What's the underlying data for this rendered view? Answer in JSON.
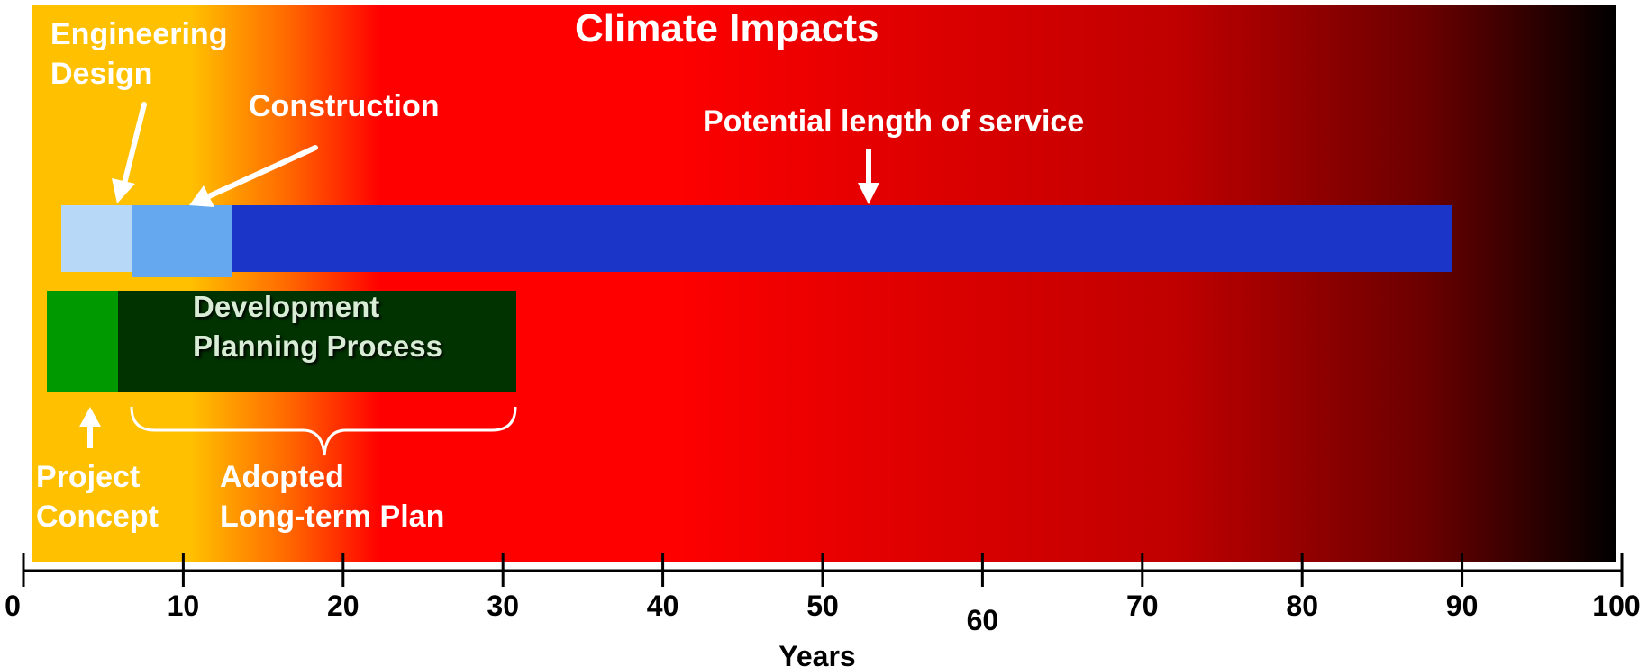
{
  "title": "Climate Impacts",
  "labels": {
    "engineering_design": [
      "Engineering",
      "Design"
    ],
    "construction": "Construction",
    "potential_service": "Potential length of service",
    "development_planning": [
      "Development",
      "Planning Process"
    ],
    "project_concept": [
      "Project",
      "Concept"
    ],
    "adopted_plan": [
      "Adopted",
      "Long-term Plan"
    ]
  },
  "axis": {
    "title": "Years",
    "ticks": [
      {
        "value": 0,
        "label": "0"
      },
      {
        "value": 10,
        "label": "10"
      },
      {
        "value": 20,
        "label": "20"
      },
      {
        "value": 30,
        "label": "30"
      },
      {
        "value": 40,
        "label": "40"
      },
      {
        "value": 50,
        "label": "50"
      },
      {
        "value": 60,
        "label": "60"
      },
      {
        "value": 70,
        "label": "70"
      },
      {
        "value": 80,
        "label": "80"
      },
      {
        "value": 90,
        "label": "90"
      },
      {
        "value": 100,
        "label": "100"
      }
    ]
  },
  "colors": {
    "gradient": [
      "#ffc000",
      "#ff0000",
      "#c00000",
      "#000000"
    ],
    "engineering_design_bar": "#b8d8f8",
    "construction_bar": "#66a8f0",
    "service_bar": "#1a35c8",
    "project_concept_bar": "#009900",
    "development_bar": "#003300",
    "annotation": "#ffffff",
    "axis": "#000000"
  }
}
